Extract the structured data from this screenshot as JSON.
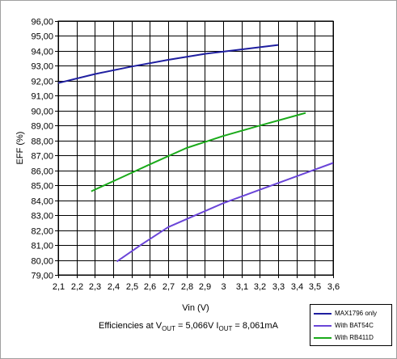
{
  "chart_data": {
    "type": "line",
    "xlabel": "Vin (V)",
    "ylabel": "EFF (%)",
    "xlim": [
      2.1,
      3.6
    ],
    "ylim": [
      79,
      96
    ],
    "x_ticks": [
      "2,1",
      "2,2",
      "2,3",
      "2,4",
      "2,5",
      "2,6",
      "2,7",
      "2,8",
      "2,9",
      "3",
      "3,1",
      "3,2",
      "3,3",
      "3,4",
      "3,5",
      "3,6"
    ],
    "y_ticks": [
      "96,00",
      "95,00",
      "94,00",
      "93,00",
      "92,00",
      "91,00",
      "90,00",
      "89,00",
      "88,00",
      "87,00",
      "86,00",
      "85,00",
      "84,00",
      "83,00",
      "82,00",
      "81,00",
      "80,00",
      "79,00"
    ],
    "grid": true,
    "legend_position": "bottom-right",
    "series": [
      {
        "name": "MAX1796 only",
        "color": "#1f1fa0",
        "x": [
          2.1,
          2.3,
          2.5,
          2.7,
          2.9,
          3.1,
          3.3
        ],
        "y": [
          91.85,
          92.45,
          92.95,
          93.4,
          93.8,
          94.1,
          94.4
        ]
      },
      {
        "name": "With BAT54C",
        "color": "#6a45d8",
        "x": [
          2.42,
          2.55,
          2.7,
          2.85,
          3.0,
          3.2,
          3.4,
          3.6
        ],
        "y": [
          79.9,
          81.0,
          82.2,
          83.0,
          83.8,
          84.7,
          85.6,
          86.5
        ]
      },
      {
        "name": "With RB411D",
        "color": "#1aaa1a",
        "x": [
          2.28,
          2.45,
          2.6,
          2.8,
          3.0,
          3.2,
          3.45
        ],
        "y": [
          84.6,
          85.55,
          86.4,
          87.5,
          88.3,
          89.0,
          89.85
        ]
      }
    ]
  },
  "caption": {
    "prefix": "Efficiencies at V",
    "sub1": "OUT",
    "mid": " = 5,066V I",
    "sub2": "OUT",
    "suffix": " = 8,061mA"
  }
}
